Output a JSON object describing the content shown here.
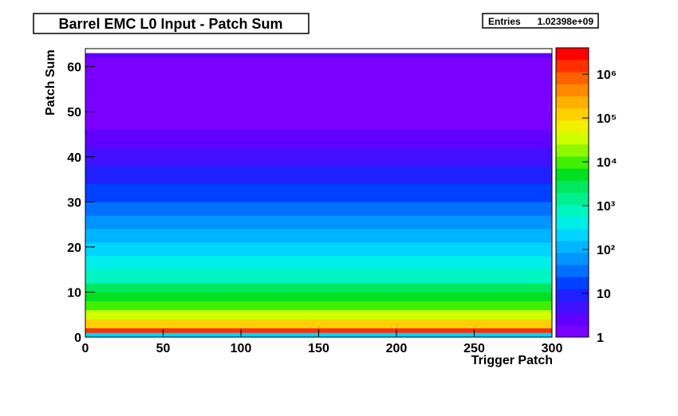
{
  "chart_data": {
    "type": "heatmap",
    "title": "Barrel EMC L0 Input - Patch Sum",
    "stats_label": "Entries",
    "stats_value": "1.02398e+09",
    "x_label": "Trigger Patch",
    "y_label": "Patch Sum",
    "xlim": [
      0,
      300
    ],
    "ylim": [
      0,
      64
    ],
    "xticks": [
      0,
      50,
      100,
      150,
      200,
      250,
      300
    ],
    "yticks": [
      0,
      10,
      20,
      30,
      40,
      50,
      60
    ],
    "x_bins": [
      0,
      20,
      40,
      60,
      80,
      100,
      120,
      140,
      160,
      180,
      200,
      220,
      240,
      260,
      280,
      300
    ],
    "y_bins": [
      0,
      1,
      2,
      4,
      6,
      8,
      10,
      12,
      15,
      18,
      21,
      24,
      27,
      30,
      34,
      38,
      42,
      46,
      50,
      56,
      62,
      63,
      64
    ],
    "values": [
      [
        200,
        200,
        200,
        200,
        200,
        200,
        200,
        200,
        200,
        200,
        200,
        200,
        200,
        200,
        200
      ],
      [
        2000000,
        2000000,
        2000000,
        2000000,
        2000000,
        2000000,
        2000000,
        2000000,
        2000000,
        2000000,
        2000000,
        2000000,
        2000000,
        2000000,
        2000000
      ],
      [
        100000,
        100000,
        100000,
        100000,
        100000,
        100000,
        100000,
        100000,
        100000,
        100000,
        100000,
        100000,
        100000,
        100000,
        100000
      ],
      [
        30000,
        30000,
        30000,
        30000,
        30000,
        30000,
        30000,
        30000,
        30000,
        30000,
        30000,
        30000,
        30000,
        30000,
        30000
      ],
      [
        10000,
        10000,
        10000,
        10000,
        10000,
        10000,
        10000,
        10000,
        10000,
        10000,
        10000,
        10000,
        10000,
        10000,
        10000
      ],
      [
        5000,
        5000,
        5000,
        5000,
        5000,
        5000,
        5000,
        5000,
        5000,
        5000,
        5000,
        5000,
        5000,
        5000,
        5000
      ],
      [
        2500,
        2500,
        2500,
        2500,
        2500,
        2500,
        2500,
        2500,
        2500,
        2500,
        2500,
        2500,
        2500,
        2500,
        2500
      ],
      [
        1000,
        1000,
        1000,
        1000,
        1000,
        1000,
        1000,
        1000,
        1000,
        1000,
        1000,
        1000,
        1000,
        1000,
        1000
      ],
      [
        500,
        500,
        500,
        500,
        500,
        500,
        500,
        500,
        500,
        500,
        500,
        500,
        500,
        500,
        500
      ],
      [
        250,
        250,
        250,
        250,
        250,
        250,
        250,
        250,
        250,
        250,
        250,
        250,
        250,
        250,
        250
      ],
      [
        120,
        120,
        120,
        120,
        120,
        120,
        120,
        120,
        120,
        120,
        120,
        120,
        120,
        120,
        120
      ],
      [
        60,
        60,
        60,
        60,
        60,
        60,
        60,
        60,
        60,
        60,
        60,
        60,
        60,
        60,
        60
      ],
      [
        30,
        30,
        30,
        30,
        30,
        30,
        30,
        30,
        30,
        30,
        30,
        30,
        30,
        30,
        30
      ],
      [
        15,
        15,
        15,
        15,
        15,
        15,
        15,
        15,
        15,
        15,
        15,
        15,
        15,
        15,
        15
      ],
      [
        8,
        8,
        8,
        8,
        8,
        8,
        8,
        8,
        8,
        8,
        8,
        8,
        8,
        8,
        8
      ],
      [
        4,
        4,
        4,
        4,
        4,
        4,
        4,
        4,
        4,
        4,
        4,
        4,
        4,
        4,
        4
      ],
      [
        2.5,
        2.5,
        2.5,
        2.5,
        2.5,
        2.5,
        2.5,
        2.5,
        2.5,
        2.5,
        2.5,
        2.5,
        2.5,
        2.5,
        2.5
      ],
      [
        1.8,
        1.8,
        1.8,
        1.8,
        1.8,
        1.8,
        1.8,
        1.8,
        1.8,
        1.8,
        1.8,
        1.8,
        1.8,
        1.8,
        1.8
      ],
      [
        1.3,
        1.3,
        1.3,
        1.3,
        1.3,
        1.3,
        1.3,
        1.3,
        1.3,
        1.3,
        1.3,
        1.3,
        1.3,
        1.3,
        1.3
      ],
      [
        1.1,
        1.1,
        1.1,
        1.1,
        1.1,
        1.1,
        1.1,
        1.1,
        1.1,
        1.1,
        1.1,
        1.1,
        1.1,
        1.1,
        1.1
      ],
      [
        2,
        2,
        2,
        2,
        2,
        2,
        2,
        2,
        2,
        2,
        2,
        2,
        2,
        2,
        2
      ],
      [
        0,
        0,
        0,
        0,
        0,
        0,
        0,
        0,
        0,
        0,
        0,
        0,
        0,
        0,
        0
      ]
    ],
    "zlim": [
      1,
      4000000
    ],
    "zlog": true,
    "zticks": [
      1,
      10,
      {
        "value": 100,
        "label": "10²"
      },
      {
        "value": 1000,
        "label": "10³"
      },
      {
        "value": 10000,
        "label": "10⁴"
      },
      {
        "value": 100000,
        "label": "10⁵"
      },
      {
        "value": 1000000,
        "label": "10⁶"
      }
    ],
    "palette": [
      "#7a00ff",
      "#6000ff",
      "#4010ff",
      "#2020ff",
      "#0040ff",
      "#0070ff",
      "#0095ff",
      "#00b5ff",
      "#00d5ff",
      "#00eee8",
      "#00f5c0",
      "#00f090",
      "#00e860",
      "#00e020",
      "#40f000",
      "#90f800",
      "#d0ff00",
      "#f0f000",
      "#ffd000",
      "#ffb000",
      "#ff8800",
      "#ff6000",
      "#ff3000",
      "#ff0000"
    ]
  }
}
